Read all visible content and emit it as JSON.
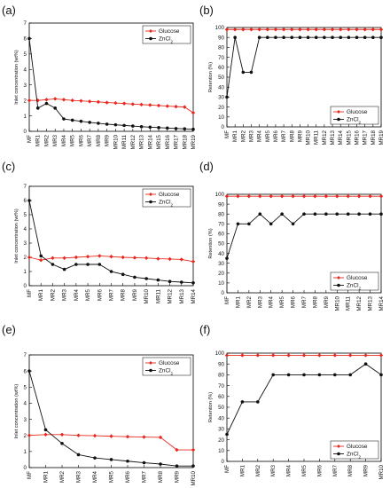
{
  "chart_data": [
    {
      "panel": "(a)",
      "type": "line",
      "ylabel": "Inlet concentration (wt%)",
      "ylim": [
        0,
        7
      ],
      "yticks": [
        0,
        1,
        2,
        3,
        4,
        5,
        6,
        7
      ],
      "x": [
        "MF",
        "MR1",
        "MR2",
        "MR3",
        "MR4",
        "MR5",
        "MR6",
        "MR7",
        "MR8",
        "MR9",
        "MR10",
        "MR11",
        "MR12",
        "MR13",
        "MR14",
        "MR15",
        "MR16",
        "MR17",
        "MR18",
        "MR19"
      ],
      "legend": "top-right",
      "series": [
        {
          "name": "Glucose",
          "color": "#e8281e",
          "marker": "diamond",
          "values": [
            2.0,
            2.0,
            2.05,
            2.1,
            2.05,
            2.0,
            1.97,
            1.93,
            1.9,
            1.86,
            1.83,
            1.8,
            1.76,
            1.73,
            1.7,
            1.67,
            1.63,
            1.6,
            1.57,
            1.2
          ]
        },
        {
          "name": "ZnCl2",
          "color": "#111111",
          "marker": "circle",
          "values": [
            6.0,
            1.5,
            1.8,
            1.5,
            0.8,
            0.72,
            0.65,
            0.58,
            0.52,
            0.46,
            0.42,
            0.38,
            0.34,
            0.3,
            0.27,
            0.24,
            0.21,
            0.18,
            0.16,
            0.13
          ]
        }
      ]
    },
    {
      "panel": "(b)",
      "type": "line",
      "ylabel": "Retention (%)",
      "ylim": [
        0,
        100
      ],
      "yticks": [
        0,
        10,
        20,
        30,
        40,
        50,
        60,
        70,
        80,
        90,
        100
      ],
      "x": [
        "MF",
        "MR1",
        "MR2",
        "MR3",
        "MR4",
        "MR5",
        "MR6",
        "MR7",
        "MR8",
        "MR9",
        "MR10",
        "MR11",
        "MR12",
        "MR13",
        "MR14",
        "MR15",
        "MR16",
        "MR17",
        "MR18",
        "MR19"
      ],
      "legend": "bottom-right",
      "series": [
        {
          "name": "Glucose",
          "color": "#e8281e",
          "marker": "diamond",
          "values": [
            98,
            98,
            98,
            98,
            98,
            98,
            98,
            98,
            98,
            98,
            98,
            98,
            98,
            98,
            98,
            98,
            98,
            98,
            98,
            98
          ]
        },
        {
          "name": "ZnCl2",
          "color": "#111111",
          "marker": "circle",
          "values": [
            30,
            90,
            55,
            55,
            90,
            90,
            90,
            90,
            90,
            90,
            90,
            90,
            90,
            90,
            90,
            90,
            90,
            90,
            90,
            90
          ]
        }
      ]
    },
    {
      "panel": "(c)",
      "type": "line",
      "ylabel": "Inlet concentration (wt%)",
      "ylim": [
        0,
        7
      ],
      "yticks": [
        0,
        1,
        2,
        3,
        4,
        5,
        6,
        7
      ],
      "x": [
        "MF",
        "MR1",
        "MR2",
        "MR3",
        "MR4",
        "MR5",
        "MR6",
        "MR7",
        "MR8",
        "MR9",
        "MR10",
        "MR11",
        "MR12",
        "MR13",
        "MR14"
      ],
      "legend": "top-right",
      "series": [
        {
          "name": "Glucose",
          "color": "#e8281e",
          "marker": "diamond",
          "values": [
            2.0,
            1.8,
            1.95,
            1.95,
            2.0,
            2.05,
            2.1,
            2.05,
            2.0,
            1.97,
            1.95,
            1.9,
            1.88,
            1.85,
            1.7
          ]
        },
        {
          "name": "ZnCl2",
          "color": "#111111",
          "marker": "circle",
          "values": [
            6.0,
            2.1,
            1.5,
            1.15,
            1.5,
            1.5,
            1.5,
            1.0,
            0.8,
            0.6,
            0.5,
            0.4,
            0.3,
            0.25,
            0.2
          ]
        }
      ]
    },
    {
      "panel": "(d)",
      "type": "line",
      "ylabel": "Retention (%)",
      "ylim": [
        0,
        100
      ],
      "yticks": [
        0,
        10,
        20,
        30,
        40,
        50,
        60,
        70,
        80,
        90,
        100
      ],
      "x": [
        "MF",
        "MR1",
        "MR2",
        "MR3",
        "MR4",
        "MR5",
        "MR6",
        "MR7",
        "MR8",
        "MR9",
        "MR10",
        "MR11",
        "MR12",
        "MR13",
        "MR14"
      ],
      "legend": "bottom-right",
      "series": [
        {
          "name": "Glucose",
          "color": "#e8281e",
          "marker": "diamond",
          "values": [
            98,
            98,
            98,
            98,
            98,
            98,
            98,
            98,
            98,
            98,
            98,
            98,
            98,
            98,
            98
          ]
        },
        {
          "name": "ZnCl2",
          "color": "#111111",
          "marker": "circle",
          "values": [
            35,
            70,
            70,
            80,
            70,
            80,
            70,
            80,
            80,
            80,
            80,
            80,
            80,
            80,
            80
          ]
        }
      ]
    },
    {
      "panel": "(e)",
      "type": "line",
      "ylabel": "Inlet concentration (wt%)",
      "ylim": [
        0,
        7
      ],
      "yticks": [
        0,
        1,
        2,
        3,
        4,
        5,
        6,
        7
      ],
      "x": [
        "MF",
        "MR1",
        "MR2",
        "MR3",
        "MR4",
        "MR5",
        "MR6",
        "MR7",
        "MR8",
        "MR9",
        "MR10"
      ],
      "legend": "top-right",
      "series": [
        {
          "name": "Glucose",
          "color": "#e8281e",
          "marker": "diamond",
          "values": [
            2.0,
            2.05,
            2.05,
            2.0,
            1.98,
            1.95,
            1.92,
            1.9,
            1.88,
            1.1,
            1.1
          ]
        },
        {
          "name": "ZnCl2",
          "color": "#111111",
          "marker": "circle",
          "values": [
            6.0,
            2.35,
            1.5,
            0.8,
            0.6,
            0.5,
            0.4,
            0.3,
            0.22,
            0.1,
            0.1
          ]
        }
      ]
    },
    {
      "panel": "(f)",
      "type": "line",
      "ylabel": "Retention (%)",
      "ylim": [
        0,
        100
      ],
      "yticks": [
        0,
        10,
        20,
        30,
        40,
        50,
        60,
        70,
        80,
        90,
        100
      ],
      "x": [
        "MF",
        "MR1",
        "MR2",
        "MR3",
        "MR4",
        "MR5",
        "MR6",
        "MR7",
        "MR8",
        "MR9",
        "MR10"
      ],
      "legend": "bottom-right",
      "series": [
        {
          "name": "Glucose",
          "color": "#e8281e",
          "marker": "diamond",
          "values": [
            98,
            98,
            98,
            98,
            98,
            98,
            98,
            98,
            98,
            98,
            98
          ]
        },
        {
          "name": "ZnCl2",
          "color": "#111111",
          "marker": "circle",
          "values": [
            25,
            55,
            55,
            80,
            80,
            80,
            80,
            80,
            80,
            90,
            80
          ]
        }
      ]
    }
  ]
}
